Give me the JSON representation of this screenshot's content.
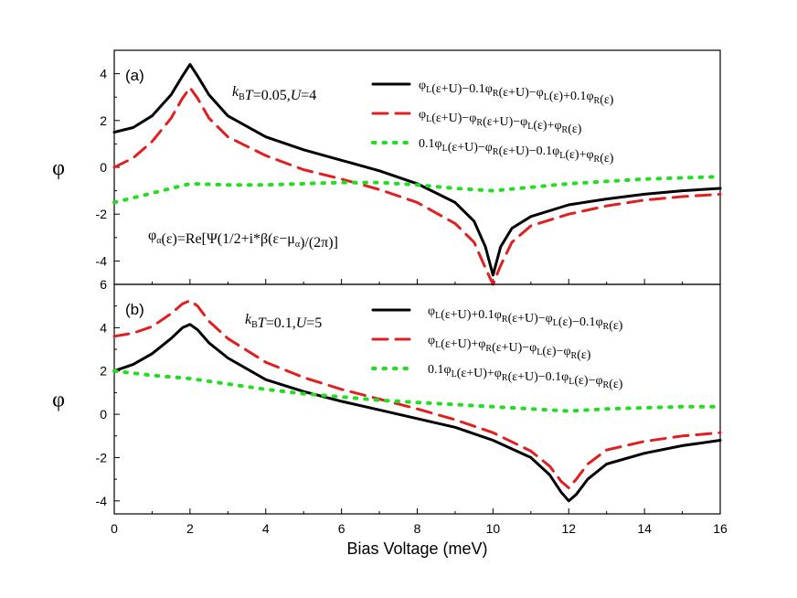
{
  "chart_data": [
    {
      "type": "line",
      "panel": "(a)",
      "xlim": [
        0,
        16
      ],
      "ylim": [
        -5,
        5
      ],
      "yticks": [
        -4,
        -2,
        0,
        2,
        4
      ],
      "ylabel": "φ",
      "annotation": "kBT=0.05,U=4",
      "formula": "φα(ε)=Re[Ψ(1/2+i*β(ε−μα)/(2π)]",
      "series": [
        {
          "name": "φL(ε+U)−0.1φR(ε+U)−φL(ε)+0.1φR(ε)",
          "color": "#000000",
          "style": "solid",
          "x": [
            0,
            0.5,
            1,
            1.5,
            1.8,
            2,
            2.2,
            2.5,
            3,
            4,
            5,
            6,
            7,
            8,
            9,
            9.5,
            9.8,
            10,
            10.2,
            10.5,
            11,
            12,
            13,
            14,
            15,
            16
          ],
          "y": [
            1.5,
            1.7,
            2.2,
            3.1,
            3.9,
            4.4,
            3.9,
            3.1,
            2.2,
            1.3,
            0.75,
            0.3,
            -0.15,
            -0.7,
            -1.5,
            -2.3,
            -3.4,
            -4.6,
            -3.4,
            -2.6,
            -2.1,
            -1.6,
            -1.35,
            -1.15,
            -1.0,
            -0.9
          ]
        },
        {
          "name": "φL(ε+U)−φR(ε+U)−φL(ε)+φR(ε)",
          "color": "#e02020",
          "style": "dashed",
          "x": [
            0,
            0.5,
            1,
            1.5,
            1.8,
            2,
            2.2,
            2.5,
            3,
            4,
            5,
            6,
            7,
            8,
            9,
            9.5,
            9.8,
            10,
            10.2,
            10.5,
            11,
            12,
            13,
            14,
            15,
            16
          ],
          "y": [
            0.0,
            0.4,
            1.1,
            2.1,
            2.95,
            3.4,
            2.95,
            2.1,
            1.3,
            0.5,
            -0.1,
            -0.5,
            -0.95,
            -1.5,
            -2.4,
            -3.2,
            -4.3,
            -5.0,
            -4.2,
            -3.2,
            -2.5,
            -2.0,
            -1.65,
            -1.4,
            -1.25,
            -1.15
          ]
        },
        {
          "name": "0.1φL(ε+U)−φR(ε+U)−0.1φL(ε)+φR(ε)",
          "color": "#22dd22",
          "style": "dotted",
          "x": [
            0,
            1,
            2,
            3,
            4,
            5,
            6,
            7,
            8,
            9,
            10,
            11,
            12,
            13,
            14,
            15,
            16
          ],
          "y": [
            -1.5,
            -1.1,
            -0.7,
            -0.75,
            -0.75,
            -0.7,
            -0.65,
            -0.65,
            -0.75,
            -0.9,
            -1.0,
            -0.85,
            -0.7,
            -0.6,
            -0.5,
            -0.45,
            -0.4
          ]
        }
      ]
    },
    {
      "type": "line",
      "panel": "(b)",
      "xlim": [
        0,
        16
      ],
      "ylim": [
        -4.6,
        6
      ],
      "yticks": [
        -4,
        -2,
        0,
        2,
        4,
        6
      ],
      "xticks": [
        0,
        2,
        4,
        6,
        8,
        10,
        12,
        14,
        16
      ],
      "xlabel": "Bias Voltage (meV)",
      "ylabel": "φ",
      "annotation": "kBT=0.1,U=5",
      "series": [
        {
          "name": "φL(ε+U)+0.1φR(ε+U)−φL(ε)−0.1φR(ε)",
          "color": "#000000",
          "style": "solid",
          "x": [
            0,
            0.5,
            1,
            1.5,
            1.8,
            2,
            2.2,
            2.5,
            3,
            4,
            5,
            6,
            7,
            8,
            9,
            10,
            11,
            11.5,
            11.8,
            12,
            12.2,
            12.5,
            13,
            14,
            15,
            16
          ],
          "y": [
            2.0,
            2.3,
            2.8,
            3.5,
            4.0,
            4.15,
            3.9,
            3.3,
            2.6,
            1.6,
            1.05,
            0.6,
            0.2,
            -0.2,
            -0.6,
            -1.2,
            -2.0,
            -2.8,
            -3.6,
            -4.0,
            -3.7,
            -3.0,
            -2.3,
            -1.8,
            -1.45,
            -1.2
          ]
        },
        {
          "name": "φL(ε+U)+φR(ε+U)−φL(ε)−φR(ε)",
          "color": "#e02020",
          "style": "dashed",
          "x": [
            0,
            0.5,
            1,
            1.5,
            1.8,
            2,
            2.2,
            2.5,
            3,
            4,
            5,
            6,
            7,
            8,
            9,
            10,
            11,
            11.5,
            11.8,
            12,
            12.2,
            12.5,
            13,
            14,
            15,
            16
          ],
          "y": [
            3.6,
            3.75,
            4.05,
            4.65,
            5.1,
            5.25,
            5.0,
            4.3,
            3.5,
            2.4,
            1.7,
            1.15,
            0.7,
            0.25,
            -0.25,
            -0.85,
            -1.7,
            -2.4,
            -3.1,
            -3.4,
            -3.0,
            -2.3,
            -1.65,
            -1.25,
            -1.0,
            -0.85
          ]
        },
        {
          "name": "0.1φL(ε+U)+φR(ε+U)−0.1φL(ε)−φR(ε)",
          "color": "#22dd22",
          "style": "dotted",
          "x": [
            0,
            1,
            2,
            3,
            4,
            5,
            6,
            7,
            8,
            9,
            10,
            11,
            12,
            13,
            14,
            15,
            16
          ],
          "y": [
            2.0,
            1.8,
            1.65,
            1.4,
            1.15,
            0.95,
            0.8,
            0.65,
            0.55,
            0.45,
            0.35,
            0.25,
            0.15,
            0.25,
            0.3,
            0.35,
            0.35
          ]
        }
      ]
    }
  ]
}
